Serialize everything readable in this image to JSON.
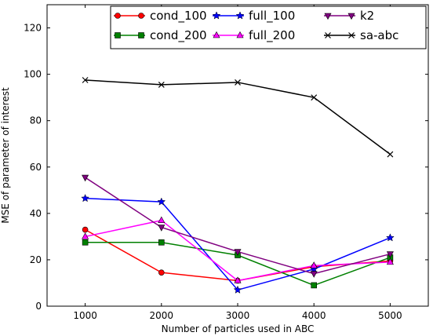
{
  "chart_data": {
    "type": "line",
    "title": "",
    "xlabel": "Number of particles used in ABC",
    "ylabel": "MSE of parameter of interest",
    "xlim": [
      500,
      5500
    ],
    "ylim": [
      0,
      130
    ],
    "xticks": [
      1000,
      2000,
      3000,
      4000,
      5000
    ],
    "yticks": [
      0,
      20,
      40,
      60,
      80,
      100,
      120
    ],
    "x": [
      1000,
      2000,
      3000,
      4000,
      5000
    ],
    "grid": false,
    "legend_position": "top-right",
    "series": [
      {
        "name": "cond_100",
        "color": "#ff0000",
        "marker": "circle",
        "values": [
          33,
          14.5,
          11,
          17,
          19.5
        ]
      },
      {
        "name": "cond_200",
        "color": "#008000",
        "marker": "square",
        "values": [
          27.5,
          27.5,
          22,
          9,
          21
        ]
      },
      {
        "name": "full_100",
        "color": "#0000ff",
        "marker": "star",
        "values": [
          46.5,
          45,
          7,
          16,
          29.5
        ]
      },
      {
        "name": "full_200",
        "color": "#ff00ff",
        "marker": "triangle-up",
        "values": [
          30,
          37,
          11,
          17.5,
          19
        ]
      },
      {
        "name": "k2",
        "color": "#800080",
        "marker": "triangle-down",
        "values": [
          55.5,
          34,
          23.5,
          14,
          22.5
        ]
      },
      {
        "name": "sa-abc",
        "color": "#000000",
        "marker": "x",
        "values": [
          97.5,
          95.5,
          96.5,
          90,
          65.5
        ]
      }
    ]
  }
}
